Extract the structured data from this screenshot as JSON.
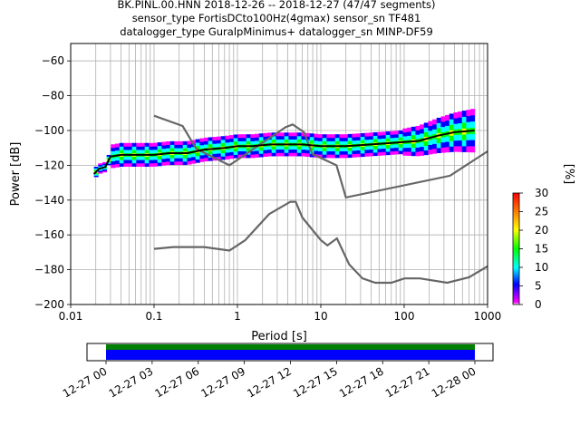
{
  "title_lines": [
    "BK.PINL.00.HNN   2018-12-26 -- 2018-12-27  (47/47 segments)",
    "sensor_type FortisDCto100Hz(4gmax) sensor_sn TF481",
    "datalogger_type GuralpMinimus+ datalogger_sn MINP-DF59"
  ],
  "chart_data": {
    "type": "heatmap",
    "xlabel": "Period [s]",
    "ylabel": "Power [dB]",
    "xscale": "log",
    "xlim": [
      0.01,
      1000
    ],
    "ylim": [
      -200,
      -50
    ],
    "x_ticks": [
      {
        "value": 0.01,
        "label": "0.01"
      },
      {
        "value": 0.1,
        "label": "0.1"
      },
      {
        "value": 1,
        "label": "1"
      },
      {
        "value": 10,
        "label": "10"
      },
      {
        "value": 100,
        "label": "100"
      },
      {
        "value": 1000,
        "label": "1000"
      }
    ],
    "y_ticks": [
      {
        "value": -60,
        "label": "−60"
      },
      {
        "value": -80,
        "label": "−80"
      },
      {
        "value": -100,
        "label": "−100"
      },
      {
        "value": -120,
        "label": "−120"
      },
      {
        "value": -140,
        "label": "−140"
      },
      {
        "value": -160,
        "label": "−160"
      },
      {
        "value": -180,
        "label": "−180"
      },
      {
        "value": -200,
        "label": "−200"
      }
    ],
    "grid": true,
    "mean_psd": {
      "period": [
        0.019,
        0.022,
        0.026,
        0.03,
        0.04,
        0.06,
        0.1,
        0.15,
        0.25,
        0.4,
        0.7,
        1,
        1.5,
        2.5,
        4,
        6,
        10,
        20,
        40,
        80,
        150,
        250,
        400,
        700
      ],
      "power": [
        -125,
        -122,
        -121,
        -115,
        -114,
        -114,
        -114,
        -113,
        -113,
        -111,
        -110,
        -109,
        -109,
        -108,
        -108,
        -108,
        -109,
        -109,
        -108,
        -107,
        -106,
        -103,
        -101,
        -100
      ]
    },
    "nlnm": {
      "period": [
        0.1,
        0.17,
        0.4,
        0.8,
        1.24,
        2.4,
        4.3,
        5,
        6,
        10,
        12,
        15.6,
        21.9,
        31.6,
        45,
        70,
        101,
        154,
        328,
        600,
        1000
      ],
      "power": [
        -168,
        -167,
        -167,
        -169,
        -163,
        -148,
        -141,
        -141,
        -150,
        -163,
        -166,
        -162,
        -177,
        -185,
        -187.5,
        -187.5,
        -185,
        -185,
        -187.5,
        -184.4,
        -178
      ]
    },
    "nhnm": {
      "period": [
        0.1,
        0.22,
        0.32,
        0.8,
        3.8,
        4.6,
        6.3,
        7.9,
        15.4,
        20,
        354.8,
        1000
      ],
      "power": [
        -91.5,
        -97.4,
        -110.5,
        -120,
        -98,
        -96.5,
        -101,
        -113.5,
        -120,
        -138.5,
        -126,
        -112
      ]
    },
    "colorbar": {
      "label": "[%]",
      "min": 0,
      "max": 30,
      "ticks": [
        0,
        5,
        10,
        15,
        20,
        25,
        30
      ]
    },
    "timeline": {
      "tick_labels": [
        "12-27 00",
        "12-27 03",
        "12-27 06",
        "12-27 09",
        "12-27 12",
        "12-27 15",
        "12-27 18",
        "12-27 21",
        "12-28 00"
      ],
      "coverage_colors": [
        "#008000",
        "#0000ff"
      ]
    }
  }
}
